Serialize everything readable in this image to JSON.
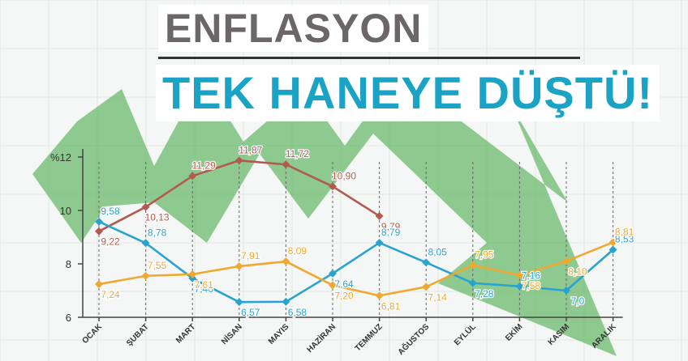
{
  "headline": {
    "line1": "ENFLASYON",
    "line2": "TEK HANEYE DÜŞTÜ!"
  },
  "colors": {
    "red": "#b35a4e",
    "blue": "#2aa3cf",
    "orange": "#f0a830",
    "arrow": "#3aa63a"
  },
  "chart_data": {
    "type": "line",
    "categories": [
      "OCAK",
      "ŞUBAT",
      "MART",
      "NİSAN",
      "MAYIS",
      "HAZİRAN",
      "TEMMUZ",
      "AĞUSTOS",
      "EYLÜL",
      "EKİM",
      "KASIM",
      "ARALIK"
    ],
    "ylim": [
      6,
      12
    ],
    "yticks": [
      {
        "value": 6,
        "label": "6"
      },
      {
        "value": 8,
        "label": "8"
      },
      {
        "value": 10,
        "label": "10"
      },
      {
        "value": 12,
        "label": "%12"
      }
    ],
    "series": [
      {
        "color": "#b35a4e",
        "values": [
          9.22,
          10.13,
          11.29,
          11.87,
          11.72,
          10.9,
          9.79,
          null,
          null,
          null,
          null,
          null
        ],
        "labels": [
          "9,22",
          "10,13",
          "11,29",
          "11,87",
          "11,72",
          "10,90",
          "9,79",
          "",
          "",
          "",
          "",
          ""
        ]
      },
      {
        "color": "#2aa3cf",
        "values": [
          9.58,
          8.78,
          7.46,
          6.57,
          6.58,
          7.64,
          8.79,
          8.05,
          7.28,
          7.16,
          7.0,
          8.53
        ],
        "labels": [
          "9,58",
          "8,78",
          "7,46",
          "6,57",
          "6,58",
          "7,64",
          "8,79",
          "8,05",
          "7,28",
          "7,16",
          "7,0",
          "8,53"
        ]
      },
      {
        "color": "#f0a830",
        "values": [
          7.24,
          7.55,
          7.61,
          7.91,
          8.09,
          7.2,
          6.81,
          7.14,
          7.95,
          7.58,
          8.1,
          8.81
        ],
        "labels": [
          "7,24",
          "7,55",
          "7,61",
          "7,91",
          "8,09",
          "7,20",
          "6,81",
          "7,14",
          "7,95",
          "7,58",
          "8,10",
          "8,81"
        ]
      }
    ]
  }
}
